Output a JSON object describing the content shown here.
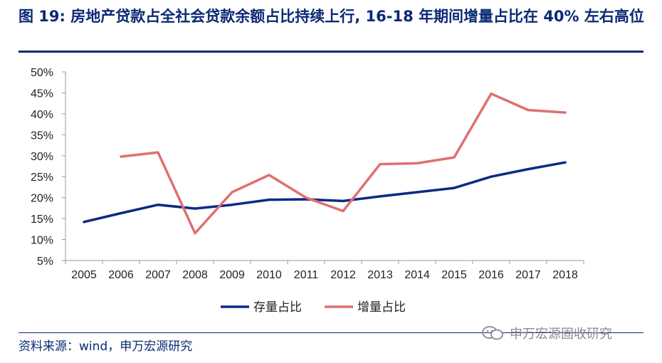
{
  "title": "图 19: 房地产贷款占全社会贷款余额占比持续上行, 16-18 年期间增量占比在 40% 左右高位",
  "source": "资料来源：wind，申万宏源研究",
  "watermark": {
    "text": "申万宏源固收研究",
    "icon": "wechat-icon"
  },
  "colors": {
    "title": "#0b2a74",
    "stock": "#0b2a86",
    "increment": "#e07070",
    "axis": "#999999"
  },
  "chart_data": {
    "type": "line",
    "title": "",
    "xlabel": "",
    "ylabel": "",
    "categories": [
      "2005",
      "2006",
      "2007",
      "2008",
      "2009",
      "2010",
      "2011",
      "2012",
      "2013",
      "2014",
      "2015",
      "2016",
      "2017",
      "2018"
    ],
    "ylim": [
      5,
      50
    ],
    "yticks": [
      "5%",
      "10%",
      "15%",
      "20%",
      "25%",
      "30%",
      "35%",
      "40%",
      "45%",
      "50%"
    ],
    "grid": false,
    "legend_position": "bottom",
    "series": [
      {
        "name": "存量占比",
        "values": [
          14.2,
          16.3,
          18.3,
          17.4,
          18.3,
          19.5,
          19.6,
          19.2,
          20.3,
          21.3,
          22.3,
          25.0,
          26.8,
          28.4
        ]
      },
      {
        "name": "增量占比",
        "values": [
          null,
          29.8,
          30.8,
          11.5,
          21.3,
          25.4,
          20.0,
          16.8,
          28.0,
          28.2,
          29.6,
          44.8,
          40.9,
          40.3
        ]
      }
    ]
  }
}
